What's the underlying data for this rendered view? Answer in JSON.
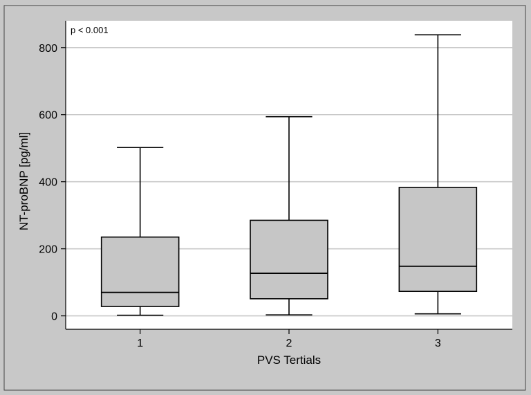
{
  "chart_data": {
    "type": "box",
    "annotation": "p < 0.001",
    "xlabel": "PVS Tertials",
    "ylabel": "NT-proBNP [pg/ml]",
    "ylim": [
      -40,
      880
    ],
    "yticks": [
      0,
      200,
      400,
      600,
      800
    ],
    "grid": true,
    "categories": [
      "1",
      "2",
      "3"
    ],
    "boxes": [
      {
        "category": "1",
        "min": 2,
        "q1": 28,
        "median": 70,
        "q3": 235,
        "max": 502
      },
      {
        "category": "2",
        "min": 3,
        "q1": 51,
        "median": 127,
        "q3": 285,
        "max": 594
      },
      {
        "category": "3",
        "min": 6,
        "q1": 73,
        "median": 148,
        "q3": 383,
        "max": 838
      }
    ],
    "colors": {
      "outer_background": "#c8c8c8",
      "plot_background": "#ffffff",
      "box_fill": "#c6c6c6",
      "gridline": "#c9c9c9",
      "stroke": "#000000"
    }
  }
}
